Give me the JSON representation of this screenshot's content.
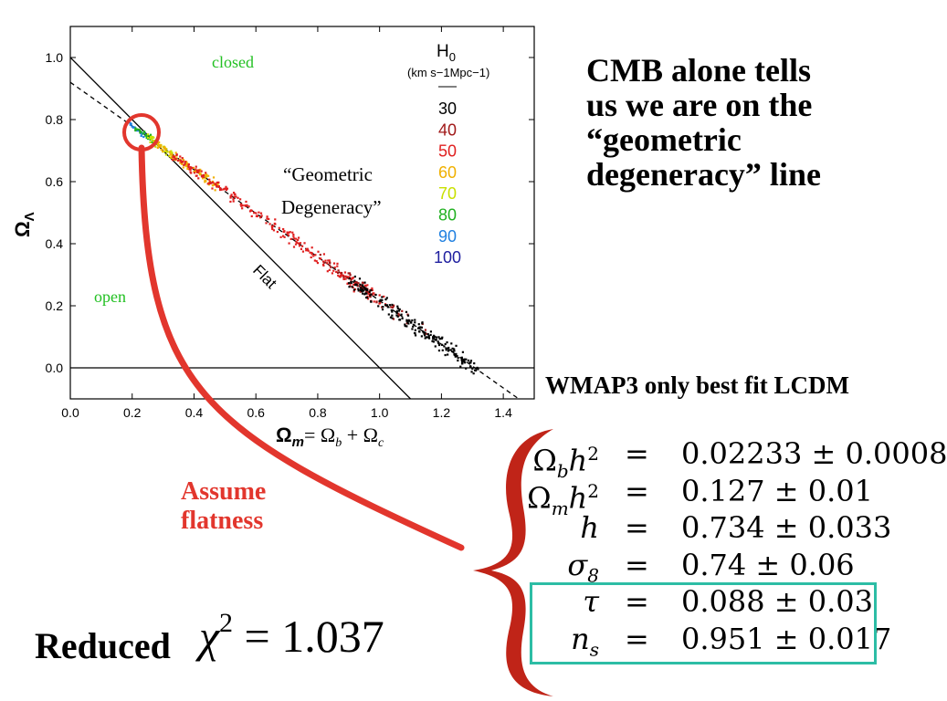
{
  "chart_data": {
    "type": "scatter",
    "xlabel_main": "Ω",
    "xlabel_main_sub": "m",
    "xlabel_eq": "= Ω",
    "xlabel_b": "b",
    "xlabel_plus": " + Ω",
    "xlabel_c": "c",
    "ylabel": "Ω",
    "ylabel_sub": "Λ",
    "xlim": [
      0.0,
      1.5
    ],
    "ylim": [
      -0.1,
      1.1
    ],
    "x_ticks": [
      "0.0",
      "0.2",
      "0.4",
      "0.6",
      "0.8",
      "1.0",
      "1.2",
      "1.4"
    ],
    "y_ticks": [
      "0.0",
      "0.2",
      "0.4",
      "0.6",
      "0.8",
      "1.0"
    ],
    "region_labels": {
      "closed": "closed",
      "open": "open"
    },
    "flat_label": "Flat",
    "degeneracy_label": [
      "“Geometric",
      "Degeneracy”"
    ],
    "legend": {
      "title": "H",
      "title_sub": "0",
      "units": "(km s−1Mpc−1)",
      "entries": [
        {
          "label": "30",
          "color": "#000000"
        },
        {
          "label": "40",
          "color": "#a01818"
        },
        {
          "label": "50",
          "color": "#e02020"
        },
        {
          "label": "60",
          "color": "#f0b000"
        },
        {
          "label": "70",
          "color": "#c8e000"
        },
        {
          "label": "80",
          "color": "#20b020"
        },
        {
          "label": "90",
          "color": "#2080e0"
        },
        {
          "label": "100",
          "color": "#2020a0"
        }
      ]
    },
    "series": [
      {
        "name": "Flat",
        "type": "line",
        "x": [
          0.0,
          1.1
        ],
        "y": [
          1.0,
          -0.1
        ]
      },
      {
        "type": "line",
        "style": "dashed",
        "x": [
          0.0,
          1.45
        ],
        "y": [
          0.92,
          -0.1
        ]
      },
      {
        "type": "line",
        "x": [
          0.0,
          1.5
        ],
        "y": [
          0.0,
          0.0
        ]
      }
    ],
    "scatter_clusters": [
      {
        "color": "#2080e0",
        "x_range": [
          0.18,
          0.24
        ],
        "count": 20
      },
      {
        "color": "#20b020",
        "x_range": [
          0.21,
          0.27
        ],
        "count": 25
      },
      {
        "color": "#c8e000",
        "x_range": [
          0.24,
          0.33
        ],
        "count": 40
      },
      {
        "color": "#f0b000",
        "x_range": [
          0.28,
          0.48
        ],
        "count": 90
      },
      {
        "color": "#e02020",
        "x_range": [
          0.33,
          1.02
        ],
        "count": 260
      },
      {
        "color": "#a01818",
        "x_range": [
          0.8,
          1.15
        ],
        "count": 40
      },
      {
        "color": "#000000",
        "x_range": [
          0.9,
          1.32
        ],
        "count": 200
      }
    ]
  },
  "side_text": [
    "CMB alone tells",
    "us we are on the",
    "“geometric",
    "degeneracy” line"
  ],
  "wmap_title": "WMAP3 only best fit LCDM",
  "assume_text": [
    "Assume",
    "flatness"
  ],
  "reduced_label": "Reduced",
  "chi_squared": {
    "symbol": "χ",
    "power": "2",
    "value": "= 1.037"
  },
  "params": [
    {
      "sym": "Ω",
      "sub": "b",
      "tail": "h",
      "sup": "2",
      "value": "0.02233 ± 0.0008"
    },
    {
      "sym": "Ω",
      "sub": "m",
      "tail": "h",
      "sup": "2",
      "value": "0.127 ± 0.01"
    },
    {
      "sym": "h",
      "sub": "",
      "tail": "",
      "sup": "",
      "value": "0.734 ± 0.033"
    },
    {
      "sym": "σ",
      "sub": "8",
      "tail": "",
      "sup": "",
      "value": "0.74 ± 0.06"
    },
    {
      "sym": "τ",
      "sub": "",
      "tail": "",
      "sup": "",
      "value": "0.088 ± 0.03"
    },
    {
      "sym": "n",
      "sub": "s",
      "tail": "",
      "sup": "",
      "value": "0.951 ± 0.017"
    }
  ],
  "equals_sign": "=",
  "colors": {
    "annotation_red": "#e2362d",
    "brace_red": "#c02418",
    "box_teal": "#2dbda5",
    "region_green": "#22c022"
  }
}
